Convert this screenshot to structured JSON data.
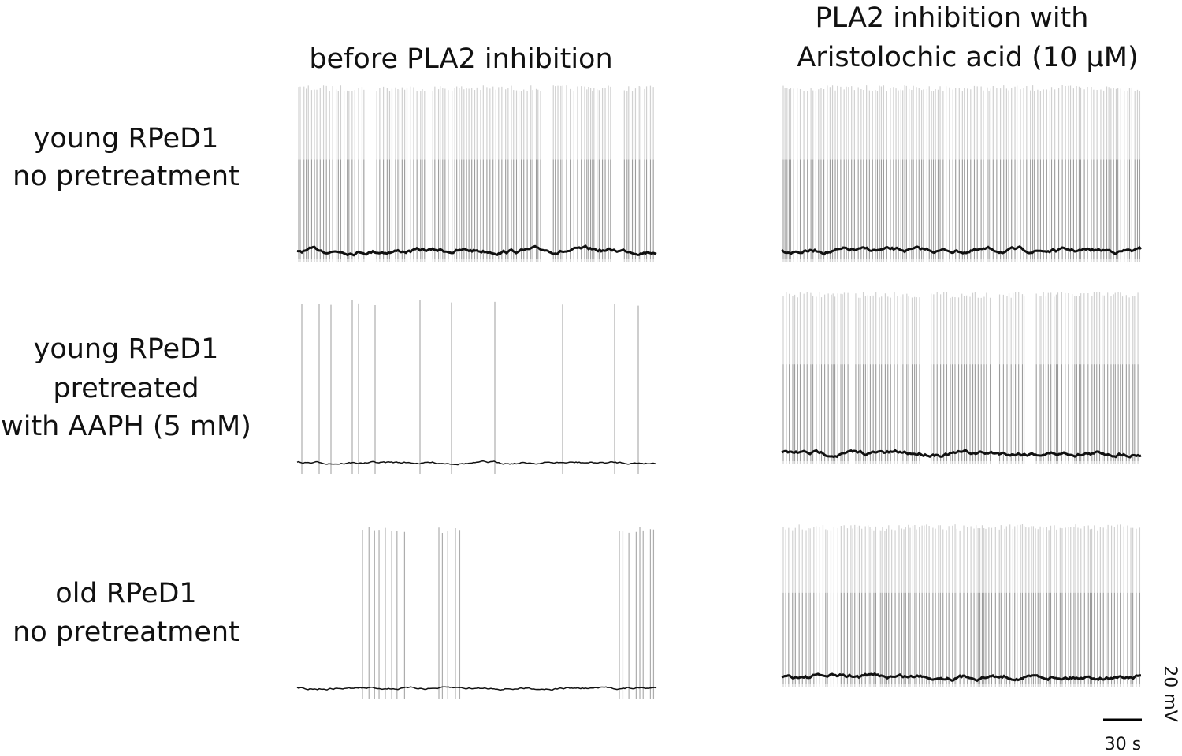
{
  "columns": [
    {
      "title": [
        "before PLA2 inhibition"
      ]
    },
    {
      "title": [
        "PLA2 inhibition with",
        "Aristolochic acid (10 μM)"
      ]
    }
  ],
  "rows": [
    {
      "label": [
        "young RPeD1",
        "no pretreatment"
      ]
    },
    {
      "label": [
        "young RPeD1",
        "pretreated",
        "with AAPH (5 mM)"
      ]
    },
    {
      "label": [
        "old RPeD1",
        "no pretreatment"
      ]
    }
  ],
  "scale_bar": {
    "voltage": "20 mV",
    "time": "30 s"
  }
}
